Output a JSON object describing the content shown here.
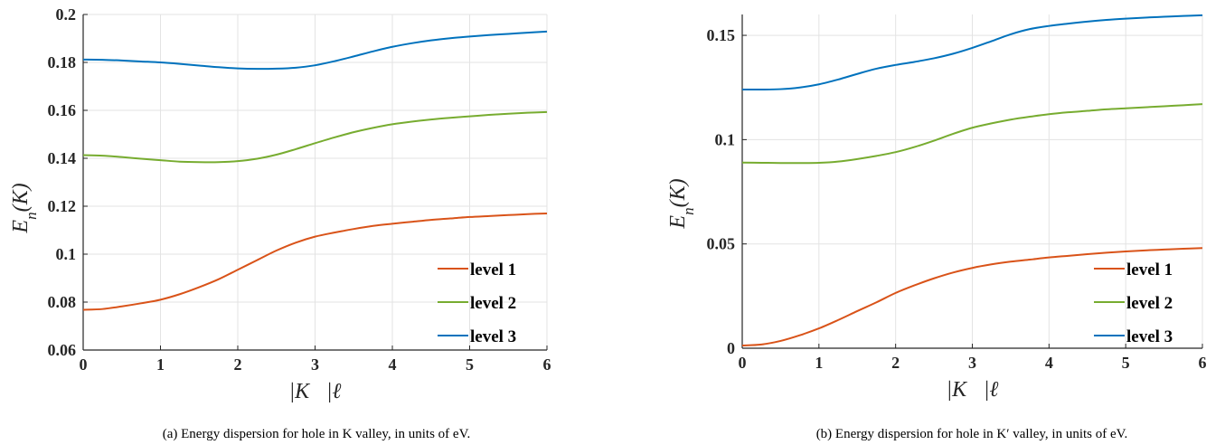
{
  "chart_data": [
    {
      "type": "line",
      "xlabel": "|K⃗|ℓ",
      "ylabel": "E_n(K)",
      "xlim": [
        0,
        6
      ],
      "ylim": [
        0.06,
        0.2
      ],
      "xticks": [
        "0",
        "1",
        "2",
        "3",
        "4",
        "5",
        "6"
      ],
      "yticks": [
        "0.06",
        "0.08",
        "0.1",
        "0.12",
        "0.14",
        "0.16",
        "0.18",
        "0.2"
      ],
      "grid": true,
      "legend_position": "bottom-right",
      "caption": "(a) Energy dispersion for hole in K valley, in units of eV.",
      "series": [
        {
          "name": "level 1",
          "color": "#d95319",
          "x": [
            0,
            0.25,
            0.5,
            0.75,
            1,
            1.25,
            1.5,
            1.75,
            2,
            2.25,
            2.5,
            2.75,
            3,
            3.25,
            3.5,
            3.75,
            4,
            4.25,
            4.5,
            4.75,
            5,
            5.25,
            5.5,
            5.75,
            6
          ],
          "y": [
            0.0768,
            0.0771,
            0.0782,
            0.0795,
            0.081,
            0.0833,
            0.0862,
            0.0895,
            0.0935,
            0.0975,
            0.1015,
            0.1048,
            0.1073,
            0.109,
            0.1105,
            0.1118,
            0.1127,
            0.1135,
            0.1143,
            0.1149,
            0.1155,
            0.1159,
            0.1163,
            0.1167,
            0.117
          ]
        },
        {
          "name": "level 2",
          "color": "#77ac30",
          "x": [
            0,
            0.25,
            0.5,
            0.75,
            1,
            1.25,
            1.5,
            1.75,
            2,
            2.25,
            2.5,
            2.75,
            3,
            3.25,
            3.5,
            3.75,
            4,
            4.25,
            4.5,
            4.75,
            5,
            5.25,
            5.5,
            5.75,
            6
          ],
          "y": [
            0.1413,
            0.1411,
            0.1405,
            0.1398,
            0.1392,
            0.1386,
            0.1384,
            0.1384,
            0.1388,
            0.1398,
            0.1415,
            0.1438,
            0.1463,
            0.1487,
            0.1509,
            0.1527,
            0.1542,
            0.1553,
            0.1562,
            0.1569,
            0.1575,
            0.1581,
            0.1586,
            0.159,
            0.1593
          ]
        },
        {
          "name": "level 3",
          "color": "#0072bd",
          "x": [
            0,
            0.25,
            0.5,
            0.75,
            1,
            1.25,
            1.5,
            1.75,
            2,
            2.25,
            2.5,
            2.75,
            3,
            3.25,
            3.5,
            3.75,
            4,
            4.25,
            4.5,
            4.75,
            5,
            5.25,
            5.5,
            5.75,
            6
          ],
          "y": [
            0.1812,
            0.1811,
            0.1808,
            0.1804,
            0.18,
            0.1794,
            0.1787,
            0.178,
            0.1775,
            0.1773,
            0.1774,
            0.1778,
            0.1788,
            0.1805,
            0.1825,
            0.1846,
            0.1865,
            0.188,
            0.1892,
            0.1901,
            0.1908,
            0.1914,
            0.1919,
            0.1924,
            0.1929
          ]
        }
      ]
    },
    {
      "type": "line",
      "xlabel": "|K⃗|ℓ",
      "ylabel": "E_n(K)",
      "xlim": [
        0,
        6
      ],
      "ylim": [
        0,
        0.16
      ],
      "xticks": [
        "0",
        "1",
        "2",
        "3",
        "4",
        "5",
        "6"
      ],
      "yticks": [
        "0",
        "0.05",
        "0.1",
        "0.15"
      ],
      "grid": true,
      "legend_position": "bottom-right",
      "caption": "(b) Energy dispersion for hole in K′ valley, in units of eV.",
      "series": [
        {
          "name": "level 1",
          "color": "#d95319",
          "x": [
            0,
            0.25,
            0.5,
            0.75,
            1,
            1.25,
            1.5,
            1.75,
            2,
            2.25,
            2.5,
            2.75,
            3,
            3.25,
            3.5,
            3.75,
            4,
            4.25,
            4.5,
            4.75,
            5,
            5.25,
            5.5,
            5.75,
            6
          ],
          "y": [
            0.0013,
            0.0018,
            0.0035,
            0.0062,
            0.0095,
            0.0135,
            0.0178,
            0.022,
            0.0265,
            0.0302,
            0.0335,
            0.0363,
            0.0385,
            0.0402,
            0.0415,
            0.0425,
            0.0435,
            0.0443,
            0.0451,
            0.0458,
            0.0464,
            0.0469,
            0.0473,
            0.0477,
            0.048
          ]
        },
        {
          "name": "level 2",
          "color": "#77ac30",
          "x": [
            0,
            0.25,
            0.5,
            0.75,
            1,
            1.25,
            1.5,
            1.75,
            2,
            2.25,
            2.5,
            2.75,
            3,
            3.25,
            3.5,
            3.75,
            4,
            4.25,
            4.5,
            4.75,
            5,
            5.25,
            5.5,
            5.75,
            6
          ],
          "y": [
            0.089,
            0.0889,
            0.0888,
            0.0888,
            0.0889,
            0.0895,
            0.0907,
            0.0922,
            0.094,
            0.0965,
            0.0995,
            0.1028,
            0.1057,
            0.1078,
            0.1096,
            0.111,
            0.1122,
            0.1131,
            0.1138,
            0.1145,
            0.115,
            0.1155,
            0.116,
            0.1165,
            0.117
          ]
        },
        {
          "name": "level 3",
          "color": "#0072bd",
          "x": [
            0,
            0.25,
            0.5,
            0.75,
            1,
            1.25,
            1.5,
            1.75,
            2,
            2.25,
            2.5,
            2.75,
            3,
            3.25,
            3.5,
            3.75,
            4,
            4.25,
            4.5,
            4.75,
            5,
            5.25,
            5.5,
            5.75,
            6
          ],
          "y": [
            0.124,
            0.124,
            0.1242,
            0.125,
            0.1265,
            0.1288,
            0.1315,
            0.134,
            0.1358,
            0.1373,
            0.139,
            0.1412,
            0.144,
            0.1472,
            0.1505,
            0.153,
            0.1545,
            0.1556,
            0.1566,
            0.1574,
            0.158,
            0.1585,
            0.1589,
            0.1593,
            0.1596
          ]
        }
      ]
    }
  ]
}
